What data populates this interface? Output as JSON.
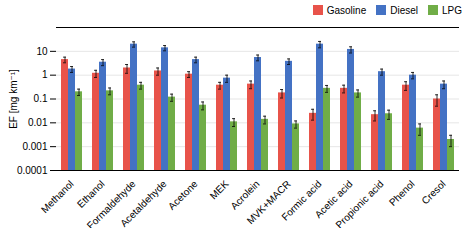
{
  "chart_data": {
    "type": "bar",
    "categories": [
      "Methanol",
      "Ethanol",
      "Formaldehyde",
      "Acetaldehyde",
      "Acetone",
      "MEK",
      "Acrolein",
      "MVK+MACR",
      "Formic acid",
      "Acetic acid",
      "Propionic acid",
      "Phenol",
      "Cresol"
    ],
    "series": [
      {
        "name": "Gasoline",
        "color": "#e8534a",
        "values": [
          4.5,
          1.2,
          2.0,
          1.5,
          1.1,
          0.38,
          0.42,
          0.18,
          0.025,
          0.28,
          0.022,
          0.38,
          0.1
        ],
        "errors": [
          1.2,
          0.4,
          0.8,
          0.5,
          0.3,
          0.12,
          0.15,
          0.07,
          0.012,
          0.1,
          0.01,
          0.15,
          0.05
        ]
      },
      {
        "name": "Diesel",
        "color": "#4472c4",
        "values": [
          1.8,
          3.5,
          20.0,
          14.0,
          4.5,
          0.75,
          5.5,
          3.8,
          20.0,
          12.0,
          1.4,
          1.0,
          0.42
        ],
        "errors": [
          0.5,
          1.0,
          5.0,
          3.5,
          1.2,
          0.25,
          1.5,
          1.0,
          6.0,
          3.5,
          0.4,
          0.3,
          0.15
        ]
      },
      {
        "name": "LPG",
        "color": "#70ad47",
        "values": [
          0.2,
          0.22,
          0.38,
          0.12,
          0.055,
          0.011,
          0.014,
          0.009,
          0.28,
          0.18,
          0.024,
          0.006,
          0.002
        ],
        "errors": [
          0.06,
          0.07,
          0.12,
          0.04,
          0.02,
          0.004,
          0.005,
          0.003,
          0.09,
          0.06,
          0.01,
          0.003,
          0.001
        ]
      }
    ],
    "ylabel": "EF [mg km⁻¹]",
    "log": "y",
    "ylim": [
      0.0001,
      100
    ],
    "yticks": [
      0.0001,
      0.001,
      0.01,
      0.1,
      1,
      10
    ],
    "grid": true,
    "legend": "upper right"
  }
}
